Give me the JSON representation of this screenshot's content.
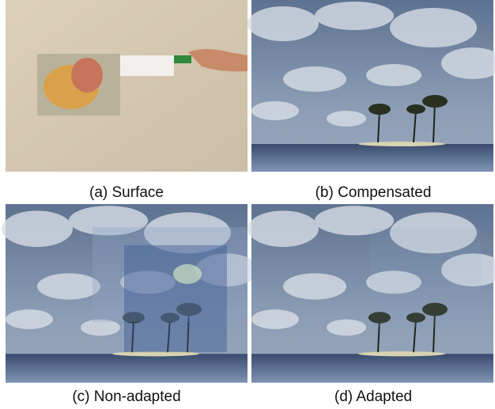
{
  "figure": {
    "panels": [
      {
        "caption": "(a) Surface"
      },
      {
        "caption": "(b) Compensated"
      },
      {
        "caption": "(c) Non-adapted"
      },
      {
        "caption": "(d) Adapted"
      }
    ]
  }
}
